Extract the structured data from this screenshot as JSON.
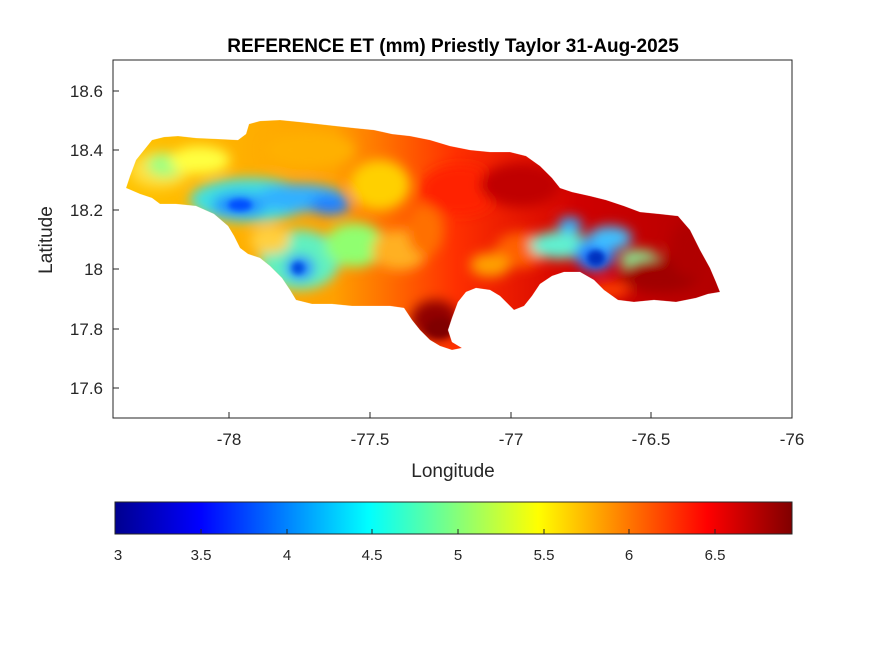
{
  "figure": {
    "title": "REFERENCE ET (mm) Priestly Taylor 31-Aug-2025",
    "xlabel": "Longitude",
    "ylabel": "Latitude"
  },
  "map": {
    "xlim": [
      -78.42,
      -76.0
    ],
    "ylim": [
      17.5,
      18.7
    ],
    "x_ticks": [
      "-78",
      "-77.5",
      "-77",
      "-76.5",
      "-76"
    ],
    "y_ticks": [
      "17.6",
      "17.8",
      "18",
      "18.2",
      "18.4",
      "18.6"
    ]
  },
  "colorbar": {
    "range": [
      3,
      6.95
    ],
    "ticks": [
      "3",
      "3.5",
      "4",
      "4.5",
      "5",
      "5.5",
      "6",
      "6.5"
    ],
    "colormap": "jet",
    "colors": [
      "#00008f",
      "#0000ff",
      "#00ffff",
      "#ffff00",
      "#ff0000",
      "#800000"
    ]
  },
  "chart_data": {
    "type": "heatmap",
    "title": "REFERENCE ET (mm) Priestly Taylor 31-Aug-2025",
    "xlabel": "Longitude",
    "ylabel": "Latitude",
    "xlim": [
      -78.42,
      -76.0
    ],
    "ylim": [
      17.5,
      18.7
    ],
    "clim": [
      3,
      6.95
    ],
    "colormap": "jet",
    "region": "Jamaica",
    "value_field": [
      {
        "lon": -78.3,
        "lat": 18.3,
        "value": 4.8
      },
      {
        "lon": -78.1,
        "lat": 18.38,
        "value": 5.4
      },
      {
        "lon": -78.0,
        "lat": 18.22,
        "value": 4.0
      },
      {
        "lon": -77.8,
        "lat": 18.25,
        "value": 4.2
      },
      {
        "lon": -77.65,
        "lat": 18.22,
        "value": 4.1
      },
      {
        "lon": -77.75,
        "lat": 18.0,
        "value": 4.2
      },
      {
        "lon": -77.9,
        "lat": 18.05,
        "value": 5.0
      },
      {
        "lon": -77.6,
        "lat": 18.45,
        "value": 5.9
      },
      {
        "lon": -77.5,
        "lat": 18.05,
        "value": 5.0
      },
      {
        "lon": -77.3,
        "lat": 18.3,
        "value": 6.2
      },
      {
        "lon": -77.25,
        "lat": 17.8,
        "value": 6.9
      },
      {
        "lon": -77.1,
        "lat": 18.0,
        "value": 6.0
      },
      {
        "lon": -77.0,
        "lat": 18.3,
        "value": 6.6
      },
      {
        "lon": -76.85,
        "lat": 18.35,
        "value": 6.9
      },
      {
        "lon": -76.8,
        "lat": 18.08,
        "value": 4.6
      },
      {
        "lon": -76.7,
        "lat": 18.02,
        "value": 3.7
      },
      {
        "lon": -76.6,
        "lat": 18.15,
        "value": 6.4
      },
      {
        "lon": -76.5,
        "lat": 17.95,
        "value": 6.8
      },
      {
        "lon": -76.35,
        "lat": 18.0,
        "value": 6.8
      }
    ]
  }
}
